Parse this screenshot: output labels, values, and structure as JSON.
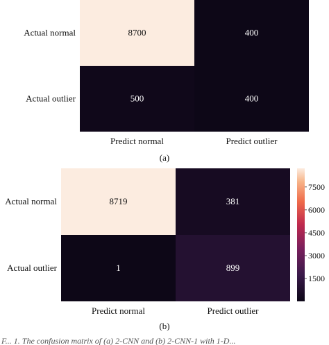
{
  "chart_data": [
    {
      "type": "heatmap",
      "row_labels": [
        "Actual normal",
        "Actual outlier"
      ],
      "col_labels": [
        "Predict normal",
        "Predict outlier"
      ],
      "values": [
        [
          8700,
          400
        ],
        [
          500,
          400
        ]
      ],
      "caption": "(a)",
      "colorbar": false
    },
    {
      "type": "heatmap",
      "row_labels": [
        "Actual normal",
        "Actual outlier"
      ],
      "col_labels": [
        "Predict normal",
        "Predict outlier"
      ],
      "values": [
        [
          8719,
          381
        ],
        [
          1,
          899
        ]
      ],
      "caption": "(b)",
      "colorbar": true,
      "colorbar_ticks": [
        1500,
        3000,
        4500,
        6000,
        7500
      ]
    }
  ],
  "colors": {
    "high": "#fcece0",
    "low": "#1c1420",
    "mid_outlier": "#2c1a2e"
  },
  "footer_text": "F... 1. The confusion matrix of (a) 2-CNN and (b) 2-CNN-1 with 1-D..."
}
